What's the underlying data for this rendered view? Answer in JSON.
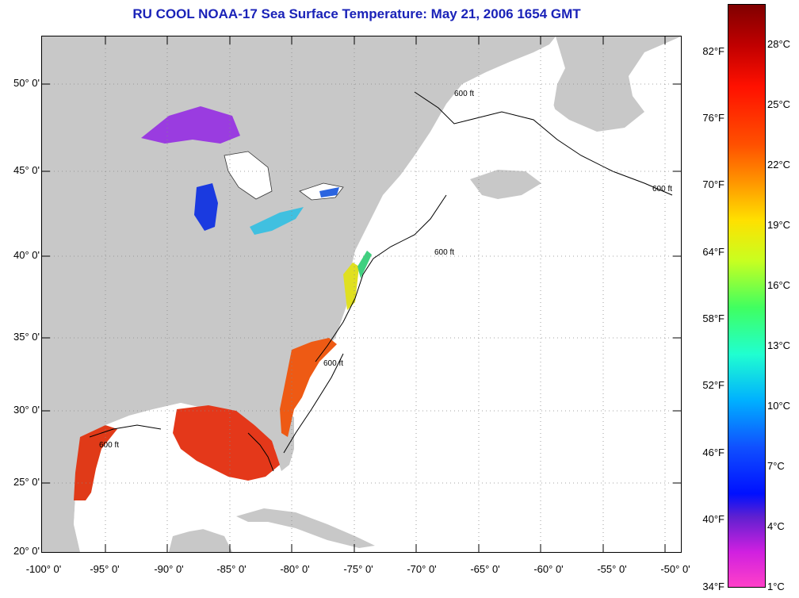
{
  "title": "RU COOL  NOAA-17  Sea Surface Temperature:  May 21, 2006 1654 GMT",
  "map": {
    "lat_labels": [
      "50° 0'",
      "45° 0'",
      "40° 0'",
      "35° 0'",
      "30° 0'",
      "25° 0'",
      "20° 0'"
    ],
    "lon_labels": [
      "-100° 0'",
      "-95° 0'",
      "-90° 0'",
      "-85° 0'",
      "-80° 0'",
      "-75° 0'",
      "-70° 0'",
      "-65° 0'",
      "-60° 0'",
      "-55° 0'",
      "-50° 0'"
    ],
    "contour_label": "600 ft",
    "colors": {
      "land": "#c8c8c8",
      "ocean": "#ffffff",
      "warm_sst": "#ee3a14",
      "cold_lake": "#9a3ce0",
      "lake_michigan": "#1a3ae0"
    }
  },
  "colorbar": {
    "fahrenheit_labels": [
      "82°F",
      "76°F",
      "70°F",
      "64°F",
      "58°F",
      "52°F",
      "46°F",
      "40°F",
      "34°F"
    ],
    "celsius_labels": [
      "28°C",
      "25°C",
      "22°C",
      "19°C",
      "16°C",
      "13°C",
      "10°C",
      "7°C",
      "4°C",
      "1°C"
    ]
  }
}
